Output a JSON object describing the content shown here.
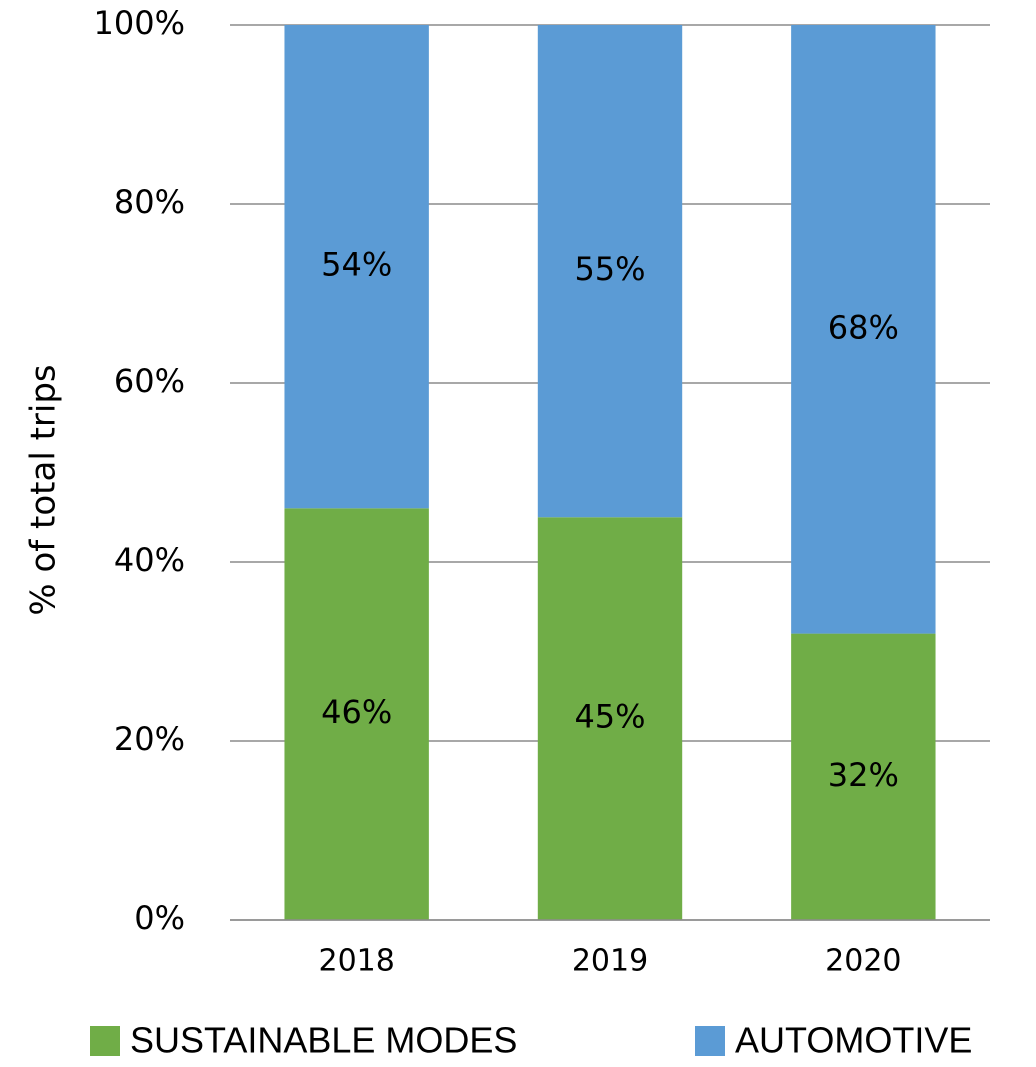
{
  "chart_data": {
    "type": "stacked_bar",
    "ylabel": "% of total trips",
    "categories": [
      "2018",
      "2019",
      "2020"
    ],
    "series": [
      {
        "name": "SUSTAINABLE MODES",
        "color": "#70ad47",
        "values": [
          46,
          45,
          32
        ],
        "value_labels": [
          "46%",
          "45%",
          "32%"
        ]
      },
      {
        "name": "AUTOMOTIVE",
        "color": "#5b9bd5",
        "values": [
          54,
          55,
          68
        ],
        "value_labels": [
          "54%",
          "55%",
          "68%"
        ]
      }
    ],
    "ylim": [
      0,
      100
    ],
    "yticks": [
      {
        "value": 0,
        "label": "0%"
      },
      {
        "value": 20,
        "label": "20%"
      },
      {
        "value": 40,
        "label": "40%"
      },
      {
        "value": 60,
        "label": "60%"
      },
      {
        "value": 80,
        "label": "80%"
      },
      {
        "value": 100,
        "label": "100%"
      }
    ],
    "grid": true,
    "legend": "bottom"
  }
}
